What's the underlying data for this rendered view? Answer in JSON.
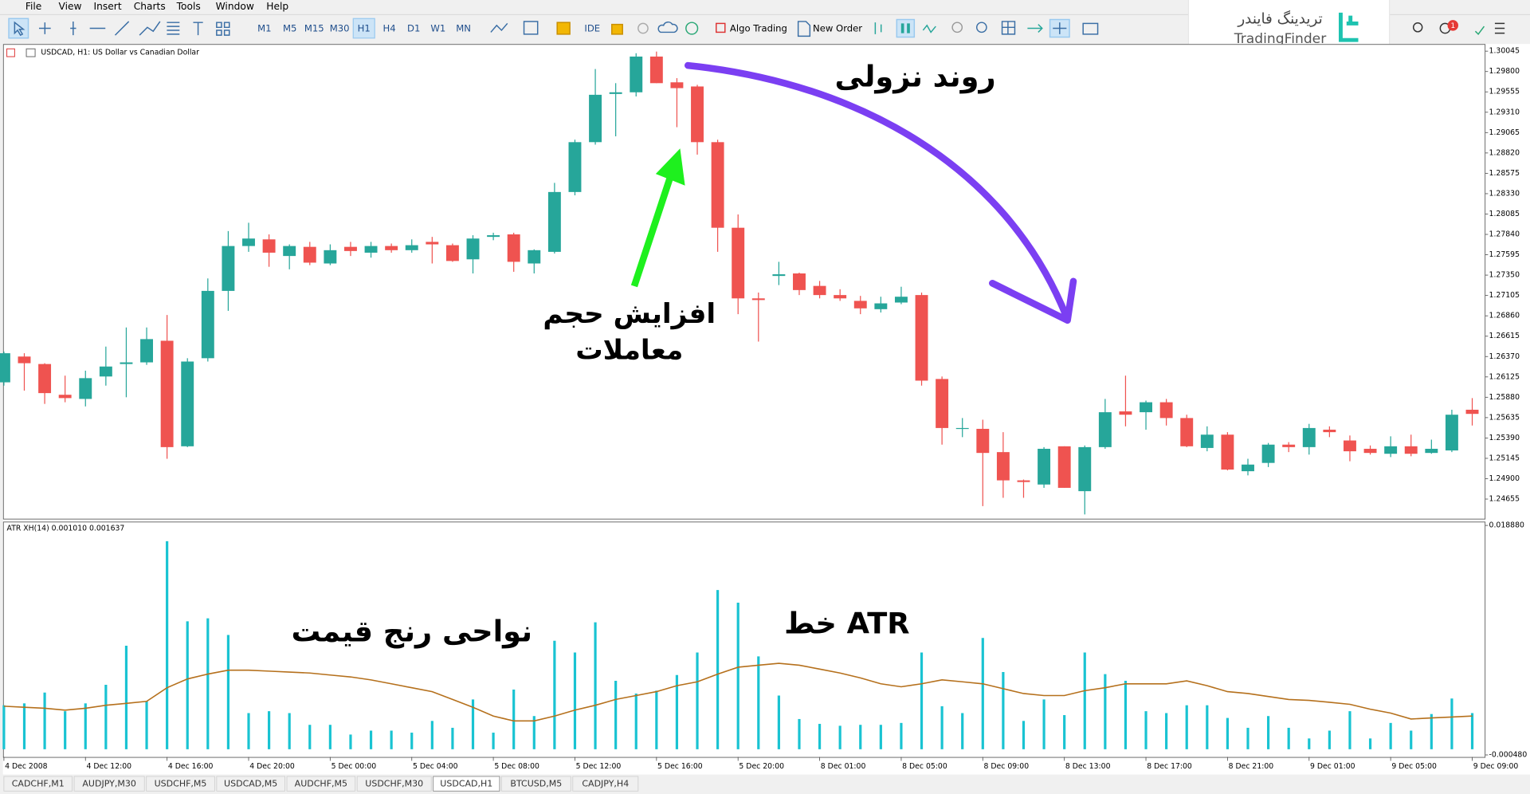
{
  "menu": [
    "File",
    "View",
    "Insert",
    "Charts",
    "Tools",
    "Window",
    "Help"
  ],
  "toolbar": {
    "timeframes": [
      {
        "label": "M1"
      },
      {
        "label": "M5"
      },
      {
        "label": "M15"
      },
      {
        "label": "M30"
      },
      {
        "label": "H1",
        "active": true
      },
      {
        "label": "H4"
      },
      {
        "label": "D1"
      },
      {
        "label": "W1"
      },
      {
        "label": "MN"
      }
    ],
    "buttons": [
      "IDE",
      "Algo Trading",
      "New Order"
    ]
  },
  "logo": {
    "fa": "تریدینگ فایندر",
    "en": "TradingFinder"
  },
  "notifications": 1,
  "chart_data": [
    {
      "type": "candlestick",
      "title": "USDCAD, H1:  US Dollar vs Canadian Dollar",
      "up_color": "#26a69a",
      "down_color": "#ef5350",
      "grid": false,
      "ylim": [
        1.2442,
        1.3012
      ],
      "yticks": [
        1.30045,
        {
          "value": 1.298,
          "label": "1.29800"
        },
        1.29555,
        {
          "value": 1.2931,
          "label": "1.29310"
        },
        1.29065,
        {
          "value": 1.2882,
          "label": "1.28820"
        },
        1.28575,
        {
          "value": 1.2833,
          "label": "1.28330"
        },
        1.28085,
        {
          "value": 1.2784,
          "label": "1.27840"
        },
        1.27595,
        {
          "value": 1.2735,
          "label": "1.27350"
        },
        1.27105,
        {
          "value": 1.2686,
          "label": "1.26860"
        },
        1.26615,
        {
          "value": 1.2637,
          "label": "1.26370"
        },
        1.26125,
        {
          "value": 1.2588,
          "label": "1.25880"
        },
        1.25635,
        {
          "value": 1.2539,
          "label": "1.25390"
        },
        1.25145,
        {
          "value": 1.249,
          "label": "1.24900"
        },
        1.24655
      ],
      "open": [
        1.2606,
        1.2637,
        1.2628,
        1.2591,
        1.2586,
        1.2613,
        1.2628,
        1.263,
        1.2656,
        1.2529,
        1.2635,
        1.2716,
        1.277,
        1.2778,
        1.2758,
        1.2769,
        1.2749,
        1.2769,
        1.2762,
        1.277,
        1.2765,
        1.2775,
        1.2771,
        1.2754,
        1.2781,
        1.2784,
        1.2749,
        1.2763,
        1.2835,
        1.2895,
        1.2953,
        1.2955,
        1.2998,
        1.2967,
        1.2962,
        1.2895,
        1.2792,
        1.2707,
        1.2734,
        1.2737,
        1.2722,
        1.2711,
        1.2704,
        1.2694,
        1.2702,
        1.2711,
        1.261,
        1.255,
        1.255,
        1.2522,
        1.2488,
        1.2483,
        1.2529,
        1.2475,
        1.2528,
        1.2571,
        1.257,
        1.2582,
        1.2563,
        1.2527,
        1.2543,
        1.2499,
        1.2509,
        1.2531,
        1.2528,
        1.2549,
        1.2536,
        1.2526,
        1.252,
        1.2529,
        1.2521,
        1.2524,
        1.2573
      ],
      "high": [
        1.2643,
        1.2641,
        1.2629,
        1.2614,
        1.262,
        1.2649,
        1.2672,
        1.2672,
        1.2687,
        1.2635,
        1.2731,
        1.2788,
        1.2798,
        1.2784,
        1.2772,
        1.2775,
        1.2772,
        1.2775,
        1.2775,
        1.2773,
        1.2778,
        1.2781,
        1.2773,
        1.2783,
        1.2786,
        1.2786,
        1.2766,
        1.2846,
        1.2898,
        1.2983,
        1.2966,
        1.3002,
        1.3004,
        1.2972,
        1.2964,
        1.2898,
        1.2808,
        1.2714,
        1.2751,
        1.2738,
        1.2728,
        1.2718,
        1.271,
        1.2709,
        1.2721,
        1.2714,
        1.2613,
        1.2563,
        1.2561,
        1.2546,
        1.2489,
        1.2528,
        1.2529,
        1.253,
        1.2586,
        1.2614,
        1.2584,
        1.2586,
        1.2567,
        1.2553,
        1.2546,
        1.2514,
        1.2533,
        1.2534,
        1.2556,
        1.2553,
        1.2542,
        1.253,
        1.2541,
        1.2543,
        1.2537,
        1.2573,
        1.2587
      ],
      "low": [
        1.2602,
        1.2596,
        1.258,
        1.2582,
        1.2577,
        1.2602,
        1.2588,
        1.2627,
        1.2514,
        1.2528,
        1.2631,
        1.2692,
        1.2763,
        1.2745,
        1.2742,
        1.2747,
        1.2747,
        1.2758,
        1.2756,
        1.2762,
        1.2762,
        1.2749,
        1.2751,
        1.2737,
        1.2777,
        1.2739,
        1.2737,
        1.2761,
        1.2831,
        1.2892,
        1.2902,
        1.295,
        1.2966,
        1.2913,
        1.288,
        1.2763,
        1.2688,
        1.2655,
        1.2723,
        1.2711,
        1.2707,
        1.2704,
        1.2688,
        1.269,
        1.27,
        1.2602,
        1.2531,
        1.254,
        1.2457,
        1.2467,
        1.2467,
        1.2479,
        1.2479,
        1.2447,
        1.2526,
        1.2553,
        1.2549,
        1.2554,
        1.2528,
        1.2523,
        1.25,
        1.2494,
        1.2504,
        1.2522,
        1.2519,
        1.254,
        1.2511,
        1.2519,
        1.2516,
        1.2517,
        1.252,
        1.2522,
        1.2554
      ],
      "close": [
        1.2641,
        1.2629,
        1.2593,
        1.2587,
        1.2611,
        1.2625,
        1.263,
        1.2658,
        1.2528,
        1.2631,
        1.2716,
        1.277,
        1.2779,
        1.2762,
        1.277,
        1.275,
        1.2765,
        1.2764,
        1.277,
        1.2765,
        1.2771,
        1.2772,
        1.2752,
        1.2779,
        1.2783,
        1.2751,
        1.2765,
        1.2835,
        1.2895,
        1.2952,
        1.2955,
        1.2998,
        1.2966,
        1.296,
        1.2895,
        1.2792,
        1.2707,
        1.2705,
        1.2736,
        1.2717,
        1.2711,
        1.2707,
        1.2695,
        1.2701,
        1.2709,
        1.2608,
        1.2551,
        1.2551,
        1.2521,
        1.2488,
        1.2486,
        1.2526,
        1.2479,
        1.2528,
        1.257,
        1.2567,
        1.2582,
        1.2563,
        1.2529,
        1.2543,
        1.2501,
        1.2507,
        1.2531,
        1.2528,
        1.2551,
        1.2546,
        1.2523,
        1.2521,
        1.2529,
        1.252,
        1.2526,
        1.2567,
        1.2568
      ],
      "annotations": [
        {
          "text": "روند نزولی",
          "color": "#000000"
        },
        {
          "text": "افزایش حجم",
          "color": "#000000"
        },
        {
          "text": "معاملات",
          "color": "#000000"
        }
      ]
    },
    {
      "type": "bar_line",
      "title": "ATR XH(14) 0.001010 0.001637",
      "ylim": [
        -0.00048,
        0.01888
      ],
      "yticks": [
        {
          "value": 0.01888,
          "label": "0.018880"
        },
        {
          "value": -0.00048,
          "label": "-0.000480"
        }
      ],
      "categories": [
        "4 Dec 2008",
        null,
        null,
        null,
        "4 Dec 12:00",
        null,
        null,
        null,
        "4 Dec 16:00",
        null,
        null,
        null,
        "4 Dec 20:00",
        null,
        null,
        null,
        "5 Dec 00:00",
        null,
        null,
        null,
        "5 Dec 04:00",
        null,
        null,
        null,
        "5 Dec 08:00",
        null,
        null,
        null,
        "5 Dec 12:00",
        null,
        null,
        null,
        "5 Dec 16:00",
        null,
        null,
        null,
        "5 Dec 20:00",
        null,
        null,
        null,
        "8 Dec 01:00",
        null,
        null,
        null,
        "8 Dec 05:00",
        null,
        null,
        null,
        "8 Dec 09:00",
        null,
        null,
        null,
        "8 Dec 13:00",
        null,
        null,
        null,
        "8 Dec 17:00",
        null,
        null,
        null,
        "8 Dec 21:00",
        null,
        null,
        null,
        "9 Dec 01:00",
        null,
        null,
        null,
        "9 Dec 05:00",
        null,
        null,
        null,
        "9 Dec 09:00"
      ],
      "series": [
        {
          "type": "bar",
          "color": "#19c3d2",
          "values": [
            0.00371,
            0.00387,
            0.00478,
            0.00321,
            0.00387,
            0.00544,
            0.00873,
            0.00404,
            0.01755,
            0.01079,
            0.01104,
            0.00964,
            0.00305,
            0.00321,
            0.00305,
            0.00206,
            0.00206,
            0.00124,
            0.00157,
            0.00157,
            0.0014,
            0.00239,
            0.00181,
            0.0042,
            0.0014,
            0.00503,
            0.0028,
            0.00915,
            0.00816,
            0.01071,
            0.00577,
            0.0047,
            0.00494,
            0.00626,
            0.00816,
            0.01343,
            0.01236,
            0.00783,
            0.00453,
            0.00255,
            0.00214,
            0.00198,
            0.00206,
            0.00206,
            0.00222,
            0.00816,
            0.00363,
            0.00305,
            0.00939,
            0.00651,
            0.00239,
            0.0042,
            0.00288,
            0.00816,
            0.00634,
            0.00577,
            0.00321,
            0.00305,
            0.00371,
            0.00371,
            0.00264,
            0.00181,
            0.0028,
            0.00181,
            0.00091,
            0.00157,
            0.00321,
            0.00091,
            0.00222,
            0.00157,
            0.00297,
            0.00428,
            0.00305
          ]
        },
        {
          "type": "line",
          "color": "#b5701c",
          "values": [
            0.00363,
            0.00354,
            0.00346,
            0.0033,
            0.00346,
            0.00371,
            0.00387,
            0.00404,
            0.00519,
            0.00593,
            0.00634,
            0.00667,
            0.00667,
            0.00659,
            0.00651,
            0.00643,
            0.00626,
            0.0061,
            0.00585,
            0.00552,
            0.00519,
            0.00486,
            0.0042,
            0.00354,
            0.0028,
            0.00239,
            0.00239,
            0.0028,
            0.0033,
            0.00371,
            0.0042,
            0.00453,
            0.00486,
            0.00536,
            0.00569,
            0.00634,
            0.00692,
            0.00709,
            0.00725,
            0.00709,
            0.00676,
            0.00643,
            0.00602,
            0.00552,
            0.00527,
            0.00552,
            0.00585,
            0.00569,
            0.00552,
            0.00511,
            0.0047,
            0.00453,
            0.00453,
            0.00494,
            0.00519,
            0.00552,
            0.00552,
            0.00552,
            0.00577,
            0.00536,
            0.00486,
            0.0047,
            0.00445,
            0.0042,
            0.00412,
            0.00396,
            0.00379,
            0.00338,
            0.00305,
            0.00255,
            0.00264,
            0.00272,
            0.0028
          ]
        }
      ],
      "annotations": [
        {
          "text": "نواحی رنج قیمت",
          "color": "#000000"
        },
        {
          "text": "خط ATR",
          "color": "#000000"
        }
      ]
    }
  ],
  "tabs": [
    {
      "label": "CADCHF,M1"
    },
    {
      "label": "AUDJPY,M30"
    },
    {
      "label": "USDCHF,M5"
    },
    {
      "label": "USDCAD,M5"
    },
    {
      "label": "AUDCHF,M5"
    },
    {
      "label": "USDCHF,M30"
    },
    {
      "label": "USDCAD,H1",
      "active": true
    },
    {
      "label": "BTCUSD,M5"
    },
    {
      "label": "CADJPY,H4"
    }
  ]
}
